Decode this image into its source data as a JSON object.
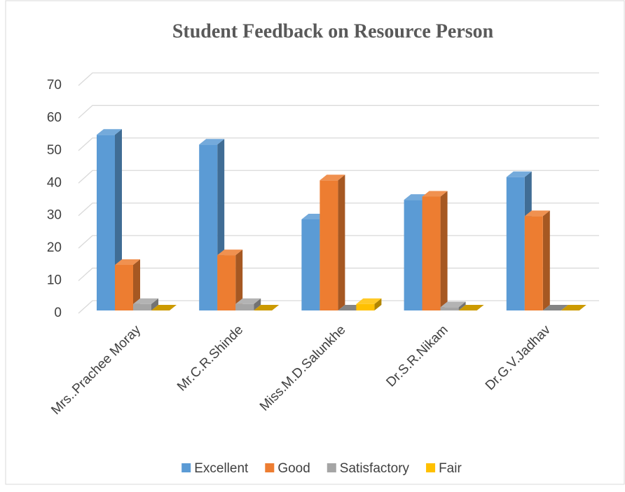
{
  "chart_data": {
    "type": "bar3d",
    "title": "Student Feedback on Resource Person",
    "categories": [
      "Mrs..Prachee Moray",
      "Mr.C.R.Shinde",
      "Miss.M.D.Salunkhe",
      "Dr.S.R.Nikam",
      "Dr.G.V.Jadhav"
    ],
    "series": [
      {
        "name": "Excellent",
        "color": "#5b9bd5",
        "values": [
          54,
          51,
          28,
          34,
          41
        ]
      },
      {
        "name": "Good",
        "color": "#ed7d31",
        "values": [
          14,
          17,
          40,
          35,
          29
        ]
      },
      {
        "name": "Satisfactory",
        "color": "#a5a5a5",
        "values": [
          2,
          2,
          0,
          1,
          0
        ]
      },
      {
        "name": "Fair",
        "color": "#ffc000",
        "values": [
          0,
          0,
          2,
          0,
          0
        ]
      }
    ],
    "ylim": [
      0,
      70
    ],
    "yticks": [
      0,
      10,
      20,
      30,
      40,
      50,
      60,
      70
    ],
    "grid": true,
    "legend": "bottom"
  }
}
